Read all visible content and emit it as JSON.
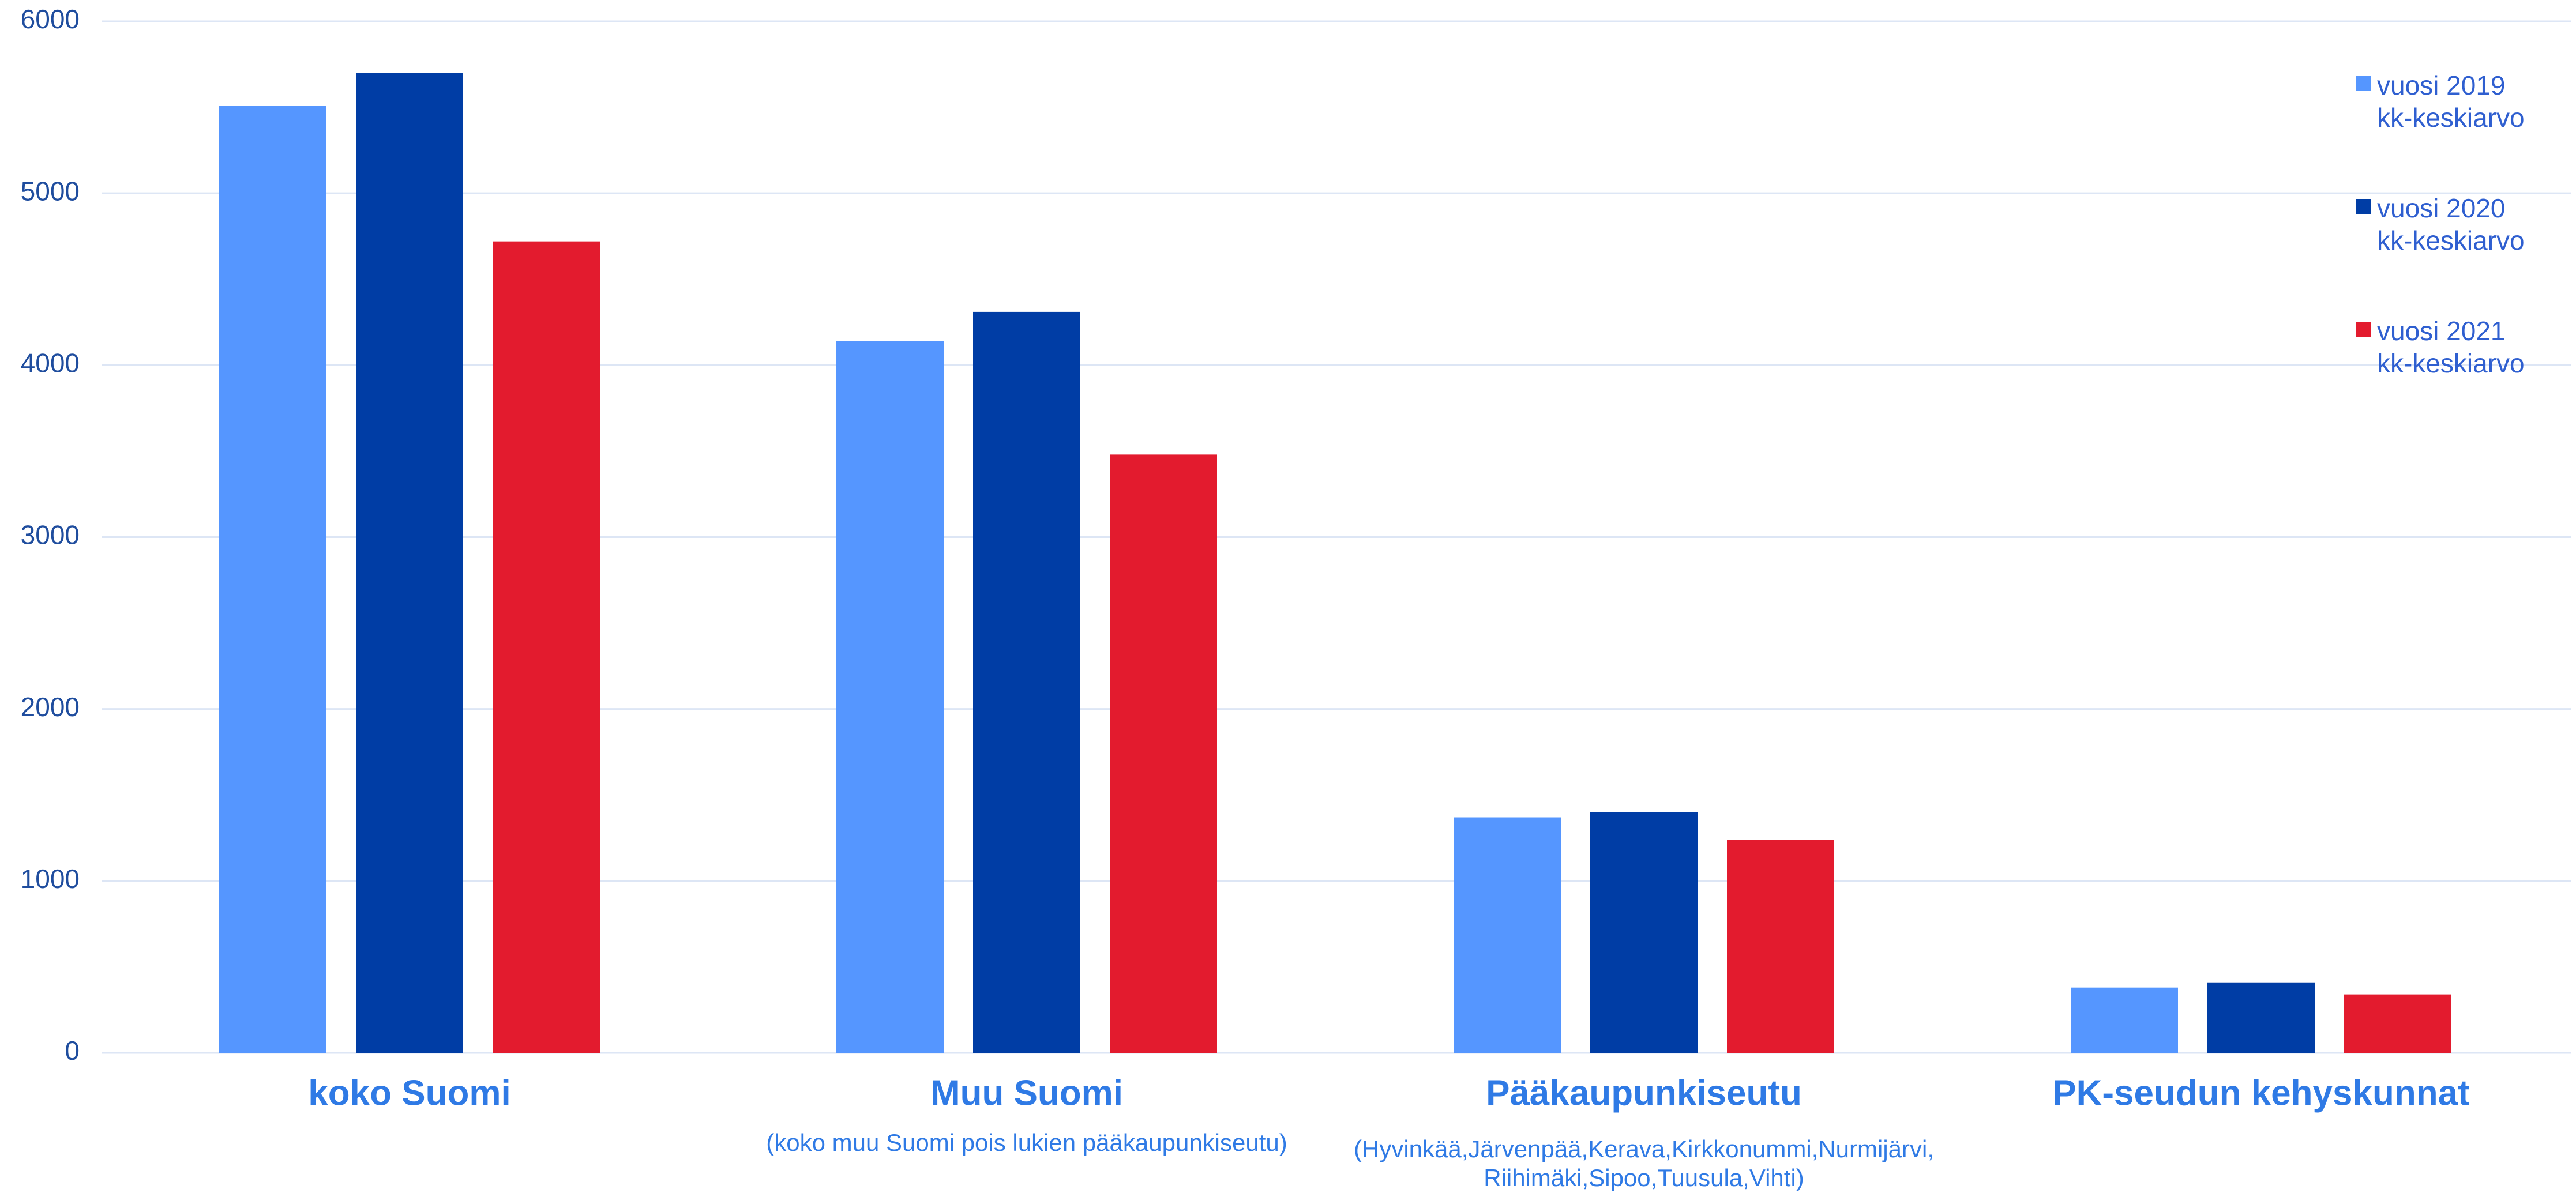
{
  "chart_data": {
    "type": "bar",
    "categories": [
      "koko Suomi",
      "Muu Suomi",
      "Pääkaupunkiseutu",
      "PK-seudun kehyskunnat"
    ],
    "category_notes": [
      null,
      [
        "(koko muu Suomi pois lukien pääkaupunkiseutu)"
      ],
      [
        "(Hyvinkää,Järvenpää,Kerava,Kirkkonummi,Nurmijärvi,",
        "Riihimäki,Sipoo,Tuusula,Vihti)"
      ],
      null
    ],
    "series": [
      {
        "name": "vuosi 2019 kk-keskiarvo",
        "color": "#5596ff",
        "values": [
          5510,
          4140,
          1370,
          380
        ]
      },
      {
        "name": "vuosi 2020 kk-keskiarvo",
        "color": "#003da5",
        "values": [
          5700,
          4310,
          1400,
          410
        ]
      },
      {
        "name": "vuosi 2021 kk-keskiarvo",
        "color": "#e31b2e",
        "values": [
          4720,
          3480,
          1240,
          340
        ]
      }
    ],
    "ylim": [
      0,
      6000
    ],
    "yticks": [
      0,
      1000,
      2000,
      3000,
      4000,
      5000,
      6000
    ],
    "grid": true,
    "legend": "right"
  }
}
